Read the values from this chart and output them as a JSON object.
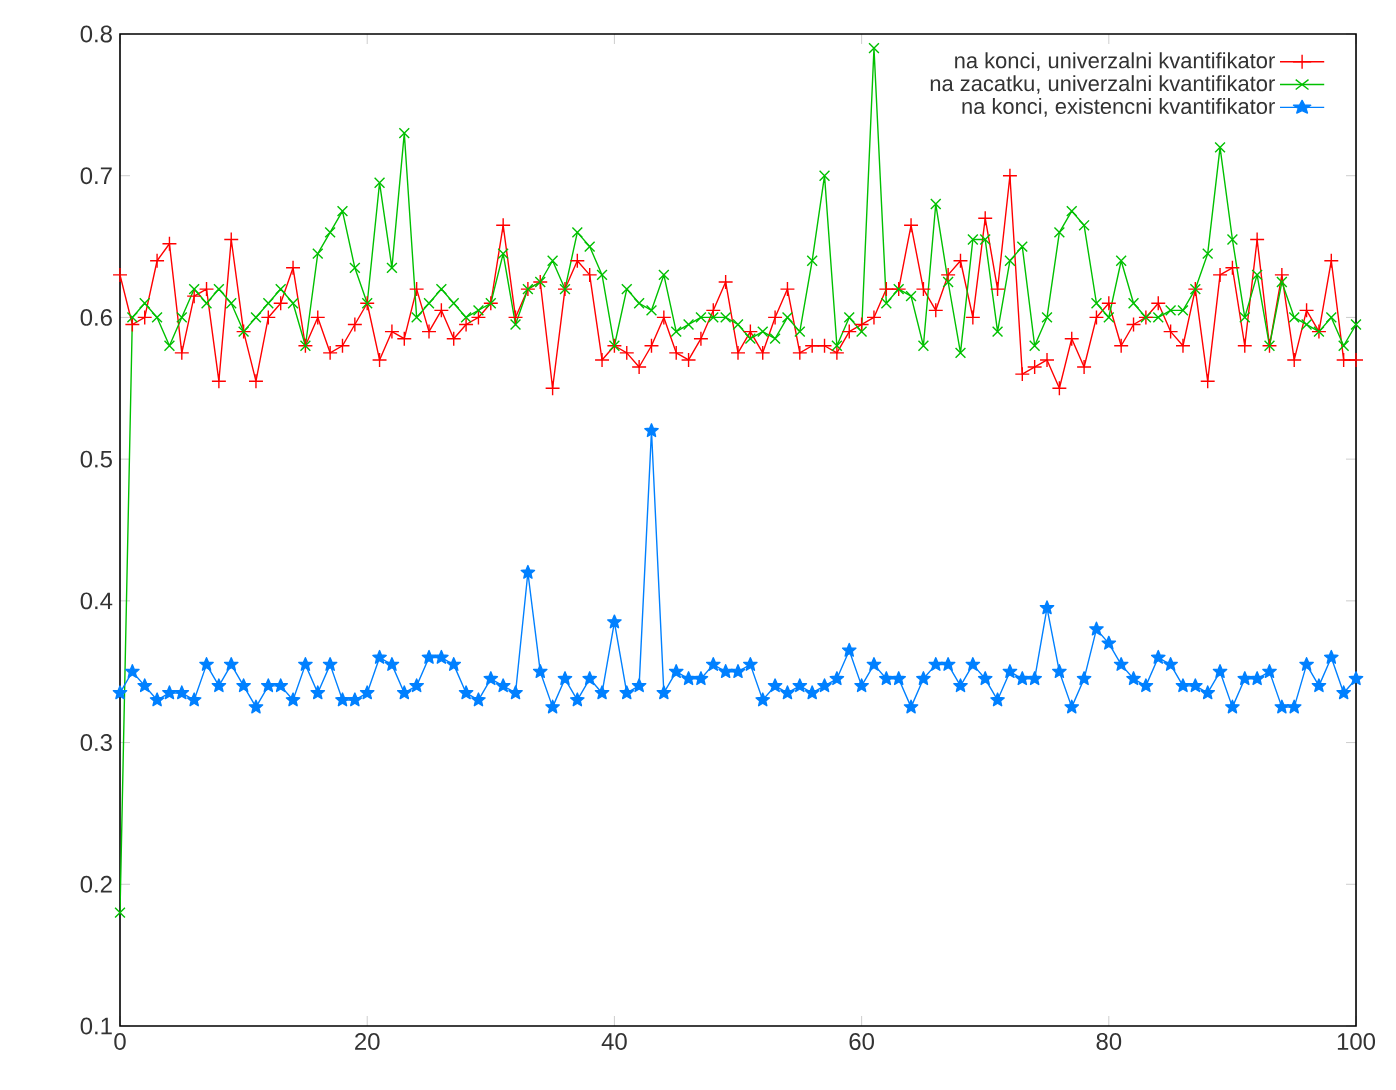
{
  "chart_data": {
    "type": "line",
    "xlim": [
      0,
      100
    ],
    "xticks": [
      0,
      20,
      40,
      60,
      80,
      100
    ],
    "ylim": [
      0.1,
      0.8
    ],
    "yticks": [
      0.1,
      0.2,
      0.3,
      0.4,
      0.5,
      0.6,
      0.7,
      0.8
    ],
    "grid": false,
    "legend": "top right",
    "line_style": "solid",
    "series": [
      {
        "name": "na konci, univerzalni kvantifikator",
        "color": "#ff0000",
        "marker": "plus",
        "x": [
          0,
          1,
          2,
          3,
          4,
          5,
          6,
          7,
          8,
          9,
          10,
          11,
          12,
          13,
          14,
          15,
          16,
          17,
          18,
          19,
          20,
          21,
          22,
          23,
          24,
          25,
          26,
          27,
          28,
          29,
          30,
          31,
          32,
          33,
          34,
          35,
          36,
          37,
          38,
          39,
          40,
          41,
          42,
          43,
          44,
          45,
          46,
          47,
          48,
          49,
          50,
          51,
          52,
          53,
          54,
          55,
          56,
          57,
          58,
          59,
          60,
          61,
          62,
          63,
          64,
          65,
          66,
          67,
          68,
          69,
          70,
          71,
          72,
          73,
          74,
          75,
          76,
          77,
          78,
          79,
          80,
          81,
          82,
          83,
          84,
          85,
          86,
          87,
          88,
          89,
          90,
          91,
          92,
          93,
          94,
          95,
          96,
          97,
          98,
          99,
          100
        ],
        "values": [
          0.63,
          0.595,
          0.6,
          0.64,
          0.652,
          0.575,
          0.615,
          0.62,
          0.555,
          0.655,
          0.59,
          0.555,
          0.6,
          0.61,
          0.635,
          0.58,
          0.6,
          0.575,
          0.58,
          0.595,
          0.61,
          0.57,
          0.59,
          0.585,
          0.62,
          0.59,
          0.605,
          0.585,
          0.595,
          0.6,
          0.61,
          0.665,
          0.6,
          0.62,
          0.625,
          0.55,
          0.62,
          0.64,
          0.63,
          0.57,
          0.58,
          0.575,
          0.565,
          0.58,
          0.6,
          0.575,
          0.57,
          0.585,
          0.605,
          0.625,
          0.575,
          0.59,
          0.575,
          0.6,
          0.62,
          0.575,
          0.58,
          0.58,
          0.575,
          0.59,
          0.595,
          0.6,
          0.62,
          0.62,
          0.665,
          0.62,
          0.605,
          0.63,
          0.64,
          0.6,
          0.67,
          0.62,
          0.7,
          0.56,
          0.565,
          0.57,
          0.55,
          0.585,
          0.565,
          0.6,
          0.61,
          0.58,
          0.595,
          0.6,
          0.61,
          0.59,
          0.58,
          0.62,
          0.555,
          0.63,
          0.635,
          0.58,
          0.655,
          0.58,
          0.63,
          0.57,
          0.605,
          0.59,
          0.64,
          0.57,
          0.57
        ]
      },
      {
        "name": "na zacatku, univerzalni kvantifikator",
        "color": "#00c000",
        "marker": "cross",
        "x": [
          0,
          1,
          2,
          3,
          4,
          5,
          6,
          7,
          8,
          9,
          10,
          11,
          12,
          13,
          14,
          15,
          16,
          17,
          18,
          19,
          20,
          21,
          22,
          23,
          24,
          25,
          26,
          27,
          28,
          29,
          30,
          31,
          32,
          33,
          34,
          35,
          36,
          37,
          38,
          39,
          40,
          41,
          42,
          43,
          44,
          45,
          46,
          47,
          48,
          49,
          50,
          51,
          52,
          53,
          54,
          55,
          56,
          57,
          58,
          59,
          60,
          61,
          62,
          63,
          64,
          65,
          66,
          67,
          68,
          69,
          70,
          71,
          72,
          73,
          74,
          75,
          76,
          77,
          78,
          79,
          80,
          81,
          82,
          83,
          84,
          85,
          86,
          87,
          88,
          89,
          90,
          91,
          92,
          93,
          94,
          95,
          96,
          97,
          98,
          99,
          100
        ],
        "values": [
          0.18,
          0.6,
          0.61,
          0.6,
          0.58,
          0.6,
          0.62,
          0.61,
          0.62,
          0.61,
          0.59,
          0.6,
          0.61,
          0.62,
          0.61,
          0.58,
          0.645,
          0.66,
          0.675,
          0.635,
          0.61,
          0.695,
          0.635,
          0.73,
          0.6,
          0.61,
          0.62,
          0.61,
          0.6,
          0.605,
          0.61,
          0.645,
          0.595,
          0.62,
          0.625,
          0.64,
          0.62,
          0.66,
          0.65,
          0.63,
          0.58,
          0.62,
          0.61,
          0.605,
          0.63,
          0.59,
          0.595,
          0.6,
          0.6,
          0.6,
          0.595,
          0.585,
          0.59,
          0.585,
          0.6,
          0.59,
          0.64,
          0.7,
          0.58,
          0.6,
          0.59,
          0.79,
          0.61,
          0.62,
          0.615,
          0.58,
          0.68,
          0.625,
          0.575,
          0.655,
          0.655,
          0.59,
          0.64,
          0.65,
          0.58,
          0.6,
          0.66,
          0.675,
          0.665,
          0.61,
          0.6,
          0.64,
          0.61,
          0.6,
          0.6,
          0.605,
          0.605,
          0.62,
          0.645,
          0.72,
          0.655,
          0.6,
          0.63,
          0.58,
          0.625,
          0.6,
          0.595,
          0.59,
          0.6,
          0.58,
          0.595
        ]
      },
      {
        "name": "na konci, existencni kvantifikator",
        "color": "#0080ff",
        "marker": "star",
        "x": [
          0,
          1,
          2,
          3,
          4,
          5,
          6,
          7,
          8,
          9,
          10,
          11,
          12,
          13,
          14,
          15,
          16,
          17,
          18,
          19,
          20,
          21,
          22,
          23,
          24,
          25,
          26,
          27,
          28,
          29,
          30,
          31,
          32,
          33,
          34,
          35,
          36,
          37,
          38,
          39,
          40,
          41,
          42,
          43,
          44,
          45,
          46,
          47,
          48,
          49,
          50,
          51,
          52,
          53,
          54,
          55,
          56,
          57,
          58,
          59,
          60,
          61,
          62,
          63,
          64,
          65,
          66,
          67,
          68,
          69,
          70,
          71,
          72,
          73,
          74,
          75,
          76,
          77,
          78,
          79,
          80,
          81,
          82,
          83,
          84,
          85,
          86,
          87,
          88,
          89,
          90,
          91,
          92,
          93,
          94,
          95,
          96,
          97,
          98,
          99,
          100
        ],
        "values": [
          0.335,
          0.35,
          0.34,
          0.33,
          0.335,
          0.335,
          0.33,
          0.355,
          0.34,
          0.355,
          0.34,
          0.325,
          0.34,
          0.34,
          0.33,
          0.355,
          0.335,
          0.355,
          0.33,
          0.33,
          0.335,
          0.36,
          0.355,
          0.335,
          0.34,
          0.36,
          0.36,
          0.355,
          0.335,
          0.33,
          0.345,
          0.34,
          0.335,
          0.42,
          0.35,
          0.325,
          0.345,
          0.33,
          0.345,
          0.335,
          0.385,
          0.335,
          0.34,
          0.52,
          0.335,
          0.35,
          0.345,
          0.345,
          0.355,
          0.35,
          0.35,
          0.355,
          0.33,
          0.34,
          0.335,
          0.34,
          0.335,
          0.34,
          0.345,
          0.365,
          0.34,
          0.355,
          0.345,
          0.345,
          0.325,
          0.345,
          0.355,
          0.355,
          0.34,
          0.355,
          0.345,
          0.33,
          0.35,
          0.345,
          0.345,
          0.395,
          0.35,
          0.325,
          0.345,
          0.38,
          0.37,
          0.355,
          0.345,
          0.34,
          0.36,
          0.355,
          0.34,
          0.34,
          0.335,
          0.35,
          0.325,
          0.345,
          0.345,
          0.35,
          0.325,
          0.325,
          0.355,
          0.34,
          0.36,
          0.335,
          0.345
        ]
      }
    ]
  }
}
